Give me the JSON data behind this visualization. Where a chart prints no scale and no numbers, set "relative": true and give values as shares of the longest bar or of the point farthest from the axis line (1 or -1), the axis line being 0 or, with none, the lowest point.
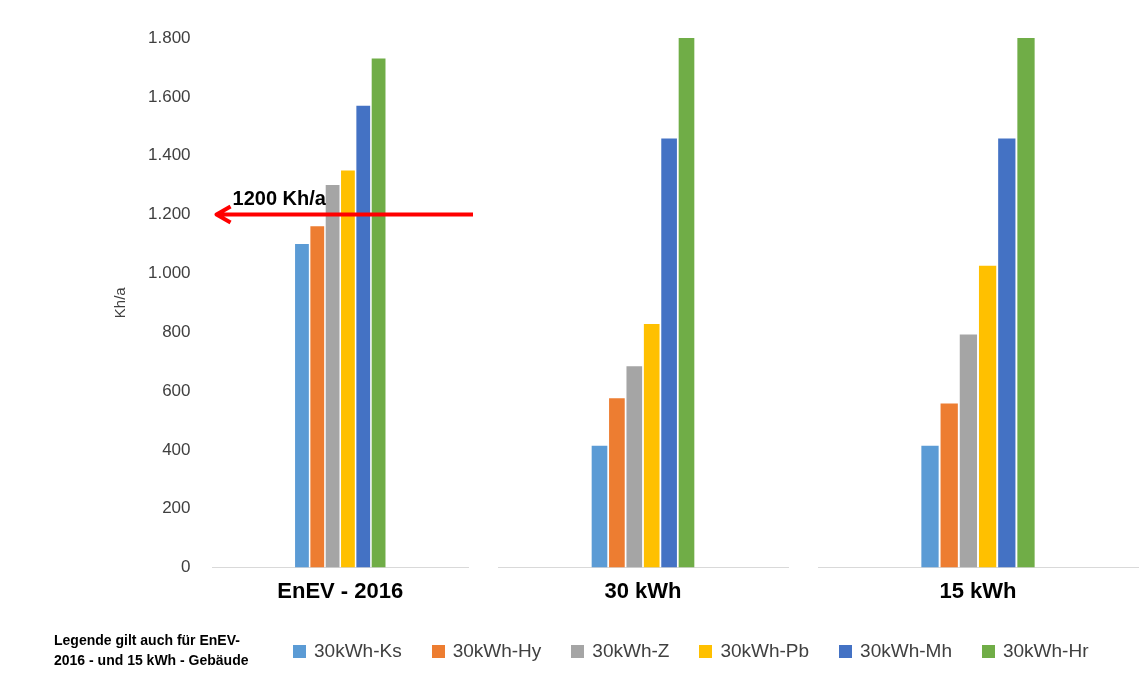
{
  "chart_data": [
    {
      "type": "bar",
      "ylabel": "Kh/a",
      "categories": [
        "EnEV - 2016"
      ],
      "ylim": [
        0,
        1800
      ],
      "yticks": [
        {
          "value": 0,
          "label": "0"
        },
        {
          "value": 200,
          "label": "200"
        },
        {
          "value": 400,
          "label": "400"
        },
        {
          "value": 600,
          "label": "600"
        },
        {
          "value": 800,
          "label": "800"
        },
        {
          "value": 1000,
          "label": "1.000"
        },
        {
          "value": 1200,
          "label": "1.200"
        },
        {
          "value": 1400,
          "label": "1.400"
        },
        {
          "value": 1600,
          "label": "1.600"
        },
        {
          "value": 1800,
          "label": "1.800"
        }
      ],
      "series": [
        {
          "color": "#5b9bd5",
          "values": [
            1100
          ]
        },
        {
          "color": "#ed7d31",
          "values": [
            1160
          ]
        },
        {
          "color": "#a5a5a5",
          "values": [
            1300
          ]
        },
        {
          "color": "#ffc000",
          "values": [
            1350
          ]
        },
        {
          "color": "#4472c4",
          "values": [
            1570
          ]
        },
        {
          "color": "#70ad47",
          "values": [
            1730
          ]
        }
      ],
      "ref_lines": [
        {
          "axis": "y",
          "value": 1200,
          "label": "1200 Kh/a",
          "color": "#ff0000"
        }
      ],
      "annotations": [
        "Legende gilt auch für EnEV- 2016 - und 15 kWh - Gebäude"
      ]
    },
    {
      "type": "bar",
      "relative": true,
      "categories": [
        "30 kWh"
      ],
      "legend": "bottom",
      "series": [
        {
          "name": "30kWh-Ks",
          "color": "#5b9bd5",
          "values": [
            0.23
          ]
        },
        {
          "name": "30kWh-Hy",
          "color": "#ed7d31",
          "values": [
            0.32
          ]
        },
        {
          "name": "30kWh-Z",
          "color": "#a5a5a5",
          "values": [
            0.38
          ]
        },
        {
          "name": "30kWh-Pb",
          "color": "#ffc000",
          "values": [
            0.46
          ]
        },
        {
          "name": "30kWh-Mh",
          "color": "#4472c4",
          "values": [
            0.81
          ]
        },
        {
          "name": "30kWh-Hr",
          "color": "#70ad47",
          "values": [
            1
          ]
        }
      ]
    },
    {
      "type": "bar",
      "relative": true,
      "categories": [
        "15 kWh"
      ],
      "series": [
        {
          "color": "#5b9bd5",
          "values": [
            0.23
          ]
        },
        {
          "color": "#ed7d31",
          "values": [
            0.31
          ]
        },
        {
          "color": "#a5a5a5",
          "values": [
            0.44
          ]
        },
        {
          "color": "#ffc000",
          "values": [
            0.57
          ]
        },
        {
          "color": "#4472c4",
          "values": [
            0.81
          ]
        },
        {
          "color": "#70ad47",
          "values": [
            1
          ]
        }
      ]
    }
  ]
}
